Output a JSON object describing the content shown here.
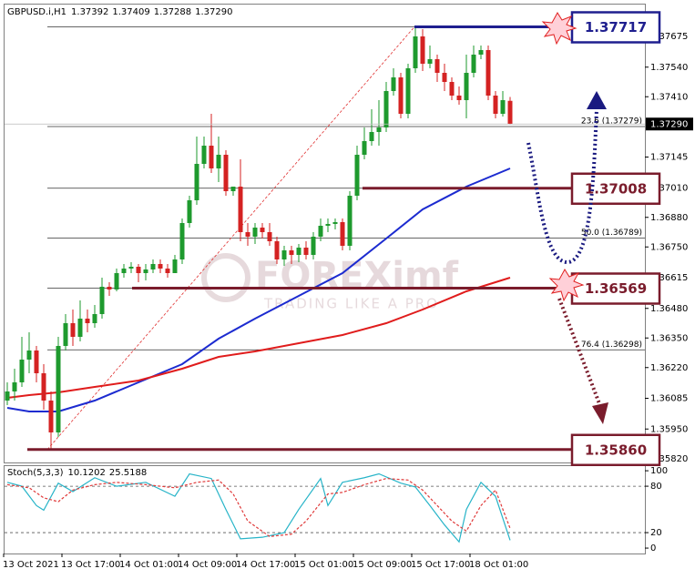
{
  "chart_data": [
    {
      "type": "candlestick",
      "title": "GBPUSD.i,H1",
      "categories": [
        "13 Oct 2021",
        null,
        null,
        null,
        null,
        null,
        null,
        null,
        "13 Oct 17:00",
        null,
        null,
        null,
        null,
        null,
        null,
        null,
        "14 Oct 01:00",
        null,
        null,
        null,
        null,
        null,
        null,
        null,
        "14 Oct 09:00",
        null,
        null,
        null,
        null,
        null,
        null,
        null,
        "14 Oct 17:00",
        null,
        null,
        null,
        null,
        null,
        null,
        null,
        "15 Oct 01:00",
        null,
        null,
        null,
        null,
        null,
        null,
        null,
        "15 Oct 09:00",
        null,
        null,
        null,
        null,
        null,
        null,
        null,
        "15 Oct 17:00",
        null,
        null,
        null,
        null,
        null,
        null,
        null,
        "18 Oct 01:00",
        null,
        null,
        null,
        null,
        null
      ],
      "open": [
        1.36075,
        1.36115,
        1.36155,
        1.36255,
        1.36295,
        1.36195,
        1.36075,
        1.35935,
        1.36315,
        1.36415,
        1.36355,
        1.36435,
        1.36415,
        1.36455,
        1.36575,
        1.36563,
        1.36635,
        1.36655,
        1.36663,
        1.36635,
        1.36651,
        1.36675,
        1.36655,
        1.36635,
        1.36695,
        1.36855,
        1.36955,
        1.37115,
        1.37195,
        1.37095,
        1.37155,
        1.36995,
        1.37015,
        1.36815,
        1.36795,
        1.36835,
        1.36815,
        1.36775,
        1.36695,
        1.36735,
        1.36715,
        1.36747,
        1.36715,
        1.36795,
        1.36843,
        1.36851,
        1.36859,
        1.36755,
        1.36975,
        1.37155,
        1.37215,
        1.37255,
        1.37275,
        1.37435,
        1.37495,
        1.37335,
        1.37535,
        1.37675,
        1.37555,
        1.37575,
        1.37515,
        1.37475,
        1.37415,
        1.37395,
        1.37515,
        1.37595,
        1.37615,
        1.37415,
        1.37335,
        1.37392
      ],
      "high": [
        1.36155,
        1.36215,
        1.36355,
        1.36375,
        1.36315,
        1.36235,
        1.36115,
        1.36355,
        1.36455,
        1.36475,
        1.36515,
        1.36475,
        1.36495,
        1.36615,
        1.36595,
        1.36655,
        1.36675,
        1.36683,
        1.36675,
        1.36675,
        1.36695,
        1.36695,
        1.36675,
        1.36715,
        1.36875,
        1.36975,
        1.37235,
        1.37235,
        1.37335,
        1.37235,
        1.37175,
        1.37015,
        1.37135,
        1.36855,
        1.36855,
        1.36855,
        1.36855,
        1.36795,
        1.36755,
        1.36755,
        1.36763,
        1.36775,
        1.36815,
        1.36875,
        1.36875,
        1.36875,
        1.36875,
        1.36995,
        1.37195,
        1.37275,
        1.37355,
        1.37395,
        1.37475,
        1.37535,
        1.37515,
        1.37555,
        1.37717,
        1.37707,
        1.37635,
        1.37595,
        1.37555,
        1.37495,
        1.37455,
        1.37595,
        1.37635,
        1.37635,
        1.37635,
        1.37435,
        1.37435,
        1.37409
      ],
      "low": [
        1.36055,
        1.36075,
        1.36135,
        1.36195,
        1.36155,
        1.36035,
        1.3586,
        1.35915,
        1.36295,
        1.36315,
        1.36335,
        1.36375,
        1.36395,
        1.36435,
        1.36535,
        1.36555,
        1.36615,
        1.36635,
        1.36595,
        1.36603,
        1.36635,
        1.36635,
        1.36615,
        1.36635,
        1.36675,
        1.36835,
        1.36935,
        1.37095,
        1.37075,
        1.37035,
        1.36975,
        1.36975,
        1.36775,
        1.36755,
        1.36763,
        1.36787,
        1.36755,
        1.36675,
        1.36667,
        1.36675,
        1.36683,
        1.36695,
        1.36695,
        1.36775,
        1.36815,
        1.36827,
        1.36735,
        1.36735,
        1.36955,
        1.37135,
        1.37195,
        1.37195,
        1.37255,
        1.37415,
        1.37315,
        1.37315,
        1.37515,
        1.37523,
        1.37535,
        1.37475,
        1.37435,
        1.37395,
        1.37375,
        1.37315,
        1.37495,
        1.37575,
        1.37395,
        1.37315,
        1.37323,
        1.37288
      ],
      "close": [
        1.36115,
        1.36155,
        1.36255,
        1.36295,
        1.36195,
        1.36075,
        1.35935,
        1.36315,
        1.36415,
        1.36355,
        1.36435,
        1.36415,
        1.36455,
        1.36575,
        1.36563,
        1.36635,
        1.36655,
        1.36663,
        1.36635,
        1.36651,
        1.36675,
        1.36655,
        1.36635,
        1.36695,
        1.36855,
        1.36955,
        1.37115,
        1.37195,
        1.37095,
        1.37155,
        1.36995,
        1.37015,
        1.36815,
        1.36795,
        1.36835,
        1.36815,
        1.36775,
        1.36695,
        1.36735,
        1.36715,
        1.36747,
        1.36715,
        1.36795,
        1.36843,
        1.36851,
        1.36859,
        1.36755,
        1.36975,
        1.37155,
        1.37215,
        1.37255,
        1.37275,
        1.37435,
        1.37495,
        1.37335,
        1.37535,
        1.37675,
        1.37555,
        1.37575,
        1.37515,
        1.37475,
        1.37415,
        1.37395,
        1.37515,
        1.37595,
        1.37615,
        1.37415,
        1.37335,
        1.37395,
        1.3729
      ],
      "close_label": "1.37290",
      "colors": {
        "up": "#1e9a2e",
        "down": "#d42222"
      },
      "ylim": [
        1.35803,
        1.37815
      ],
      "yticks": [
        1.37675,
        {
          "value": 1.3754,
          "label": "1.37540"
        },
        {
          "value": 1.3741,
          "label": "1.37410"
        },
        1.37145,
        {
          "value": 1.3701,
          "label": "1.37010"
        },
        {
          "value": 1.3688,
          "label": "1.36880"
        },
        {
          "value": 1.3675,
          "label": "1.36750"
        },
        1.36615,
        {
          "value": 1.3648,
          "label": "1.36480"
        },
        {
          "value": 1.3635,
          "label": "1.36350"
        },
        {
          "value": 1.3622,
          "label": "1.36220"
        },
        1.36085,
        {
          "value": 1.3595,
          "label": "1.35950"
        },
        {
          "value": 1.3582,
          "label": "1.35820"
        }
      ],
      "overlays": [
        {
          "color": "#1c2bd0",
          "x": [
            0,
            3,
            7,
            12,
            18,
            24,
            29,
            34,
            40,
            46,
            52,
            57,
            63,
            69
          ],
          "values": [
            1.36043,
            1.36027,
            1.36027,
            1.36075,
            1.36155,
            1.36235,
            1.36347,
            1.36435,
            1.36535,
            1.36635,
            1.36787,
            1.36915,
            1.37015,
            1.37095
          ]
        },
        {
          "color": "#e01c1c",
          "x": [
            0,
            3,
            7,
            12,
            18,
            24,
            29,
            34,
            40,
            46,
            52,
            57,
            63,
            69
          ],
          "values": [
            1.36087,
            1.36099,
            1.36111,
            1.36135,
            1.36163,
            1.36215,
            1.36267,
            1.36291,
            1.36327,
            1.36363,
            1.36415,
            1.36475,
            1.36555,
            1.36615
          ]
        }
      ],
      "fib_levels": [
        1.37717,
        {
          "value": 1.37279,
          "label": "23.6 (1.37279)"
        },
        1.37008,
        {
          "value": 1.36789,
          "label": "50.0 (1.36789)"
        },
        1.36569,
        {
          "value": 1.36298,
          "label": "76.4 (1.36298)"
        },
        1.3586
      ],
      "annotations": [
        {
          "value": 1.37717,
          "color": "#1f1f8f"
        },
        {
          "value": 1.37008,
          "color": "#7a1c2c"
        },
        {
          "value": 1.36569,
          "color": "#7a1c2c"
        },
        {
          "value": 1.3586,
          "label": "1.35860",
          "color": "#7a1c2c"
        }
      ],
      "watermark": {
        "brand": "FOREXimf",
        "tagline": "TRADING LIKE A PRO"
      }
    },
    {
      "type": "line",
      "title": "Stoch(5,3,3)",
      "ylim": [
        -7,
        106
      ],
      "yticks": [
        0,
        20,
        80,
        100
      ],
      "levels": [
        20,
        80
      ],
      "series": [
        {
          "color": "#27b4c8",
          "x": [
            0,
            2,
            4,
            5,
            7,
            9,
            12,
            15,
            19,
            23,
            25,
            28,
            30,
            32,
            35,
            38,
            40,
            43,
            44,
            46,
            49,
            51,
            54,
            56,
            58,
            60,
            62,
            63,
            65,
            67,
            69
          ],
          "values": [
            85,
            80,
            55,
            49,
            84,
            73,
            91,
            80,
            85,
            67,
            96,
            90,
            50,
            12,
            14,
            20,
            50,
            90,
            55,
            85,
            91,
            96,
            84,
            79,
            55,
            30,
            8,
            50,
            85,
            67,
            10.1202
          ]
        },
        {
          "color": "#e03a3a",
          "dash": true,
          "x": [
            0,
            3,
            5,
            7,
            9,
            12,
            15,
            19,
            23,
            26,
            29,
            31,
            33,
            36,
            39,
            41,
            44,
            46,
            49,
            52,
            55,
            57,
            59,
            61,
            63,
            65,
            67,
            69
          ],
          "values": [
            82,
            78,
            65,
            60,
            75,
            82,
            85,
            82,
            78,
            85,
            88,
            70,
            35,
            15,
            18,
            35,
            70,
            72,
            82,
            90,
            88,
            75,
            55,
            35,
            22,
            55,
            75,
            25.5188
          ]
        }
      ]
    }
  ]
}
